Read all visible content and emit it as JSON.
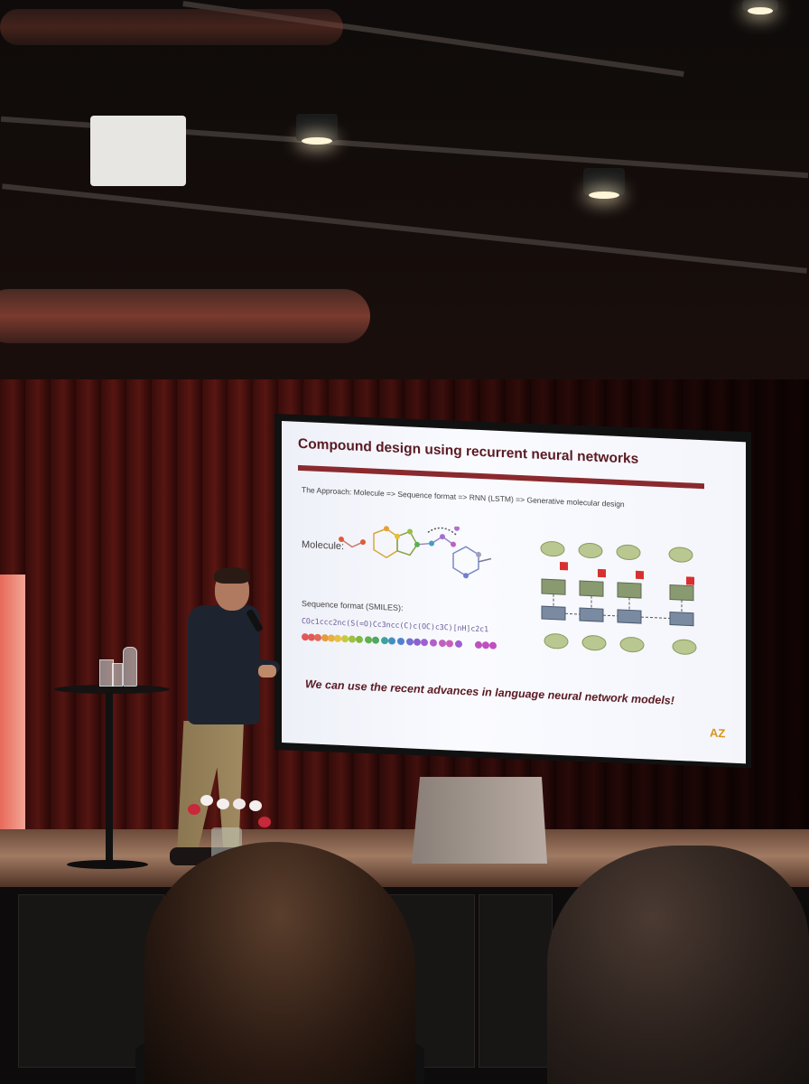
{
  "slide": {
    "title": "Compound design using recurrent neural networks",
    "approach": "The Approach: Molecule => Sequence format => RNN (LSTM) => Generative molecular design",
    "molecule_label": "Molecule:",
    "smiles_label": "Sequence format (SMILES):",
    "smiles_text": "COc1ccc2nc(S(=O)Cc3ncc(C)c(OC)c3C)[nH]c2c1",
    "tagline": "We can use the recent advances in language neural network models!",
    "logo": "AZ"
  },
  "colors": {
    "slide_title": "#5a1a22",
    "slide_rule": "#8a2a2e",
    "slide_background": "#f6f7fc",
    "logo": "#d9951a",
    "curtain": "#4a1210"
  }
}
